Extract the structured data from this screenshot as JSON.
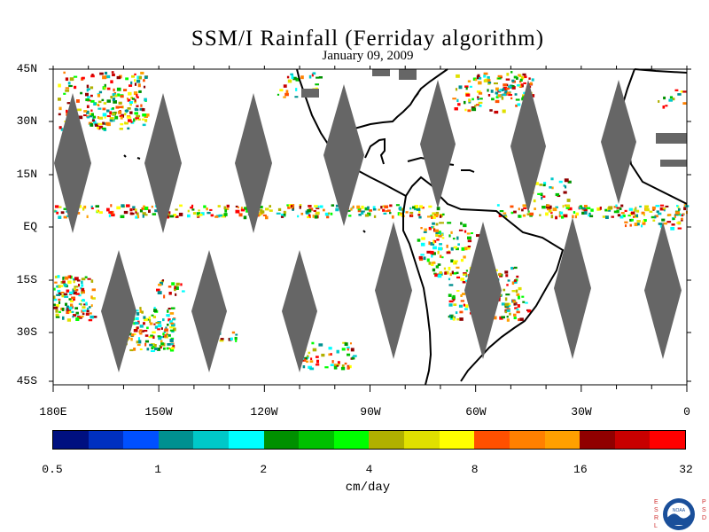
{
  "title": "SSM/I Rainfall (Ferriday algorithm)",
  "date": "January 09, 2009",
  "map": {
    "lon_labels": [
      "180E",
      "150W",
      "120W",
      "90W",
      "60W",
      "30W",
      "0"
    ],
    "lat_labels": [
      "45N",
      "30N",
      "15N",
      "EQ",
      "15S",
      "30S",
      "45S"
    ],
    "land_outline_color": "#000000",
    "no_data_color": "#666666"
  },
  "colorbar": {
    "colors": [
      "#001080",
      "#0030c0",
      "#0050ff",
      "#009090",
      "#00c8c8",
      "#00ffff",
      "#009000",
      "#00c000",
      "#00ff00",
      "#b0b000",
      "#e0e000",
      "#ffff00",
      "#ff5000",
      "#ff8000",
      "#ffa000",
      "#900000",
      "#c80000",
      "#ff0000"
    ],
    "tick_labels": [
      "0.5",
      "1",
      "2",
      "4",
      "8",
      "16",
      "32"
    ],
    "unit": "cm/day"
  },
  "logo": {
    "name": "noaa-logo",
    "left_letters": "ESRL",
    "right_letters": "PSD",
    "center_text": "NOAA"
  }
}
